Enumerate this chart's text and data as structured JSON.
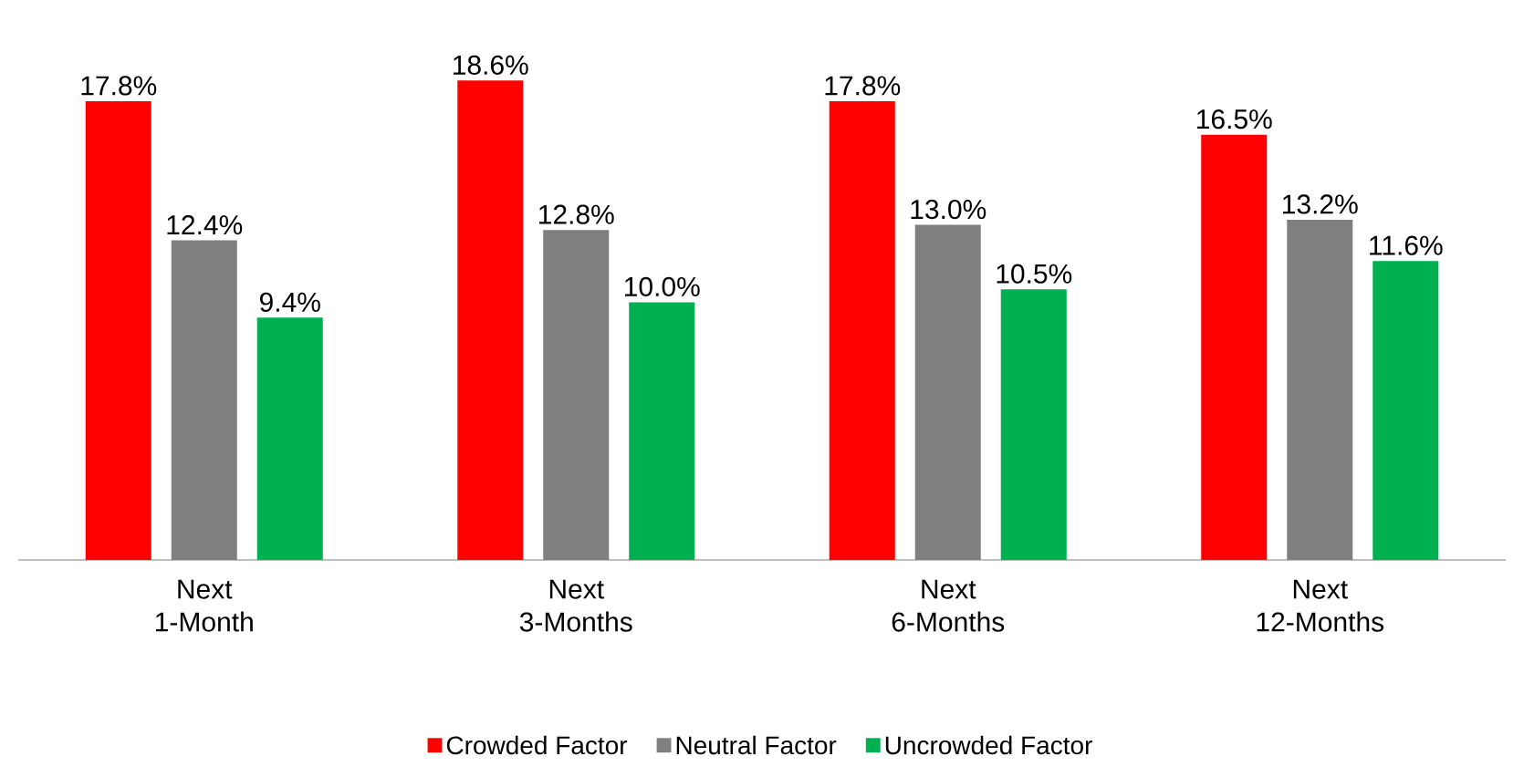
{
  "chart_data": {
    "type": "bar",
    "categories": [
      "Next 1-Month",
      "Next 3-Months",
      "Next 6-Months",
      "Next 12-Months"
    ],
    "series": [
      {
        "name": "Crowded Factor",
        "color": "#ff0000",
        "values": [
          17.8,
          18.6,
          17.8,
          16.5
        ],
        "value_labels": [
          "17.8%",
          "18.6%",
          "17.8%",
          "16.5%"
        ]
      },
      {
        "name": "Neutral Factor",
        "color": "#7f7f7f",
        "values": [
          12.4,
          12.8,
          13.0,
          13.2
        ],
        "value_labels": [
          "12.4%",
          "12.8%",
          "13.0%",
          "13.2%"
        ]
      },
      {
        "name": "Uncrowded Factor",
        "color": "#00b050",
        "values": [
          9.4,
          10.0,
          10.5,
          11.6
        ],
        "value_labels": [
          "9.4%",
          "10.0%",
          "10.5%",
          "11.6%"
        ]
      }
    ],
    "legend": "bottom"
  }
}
